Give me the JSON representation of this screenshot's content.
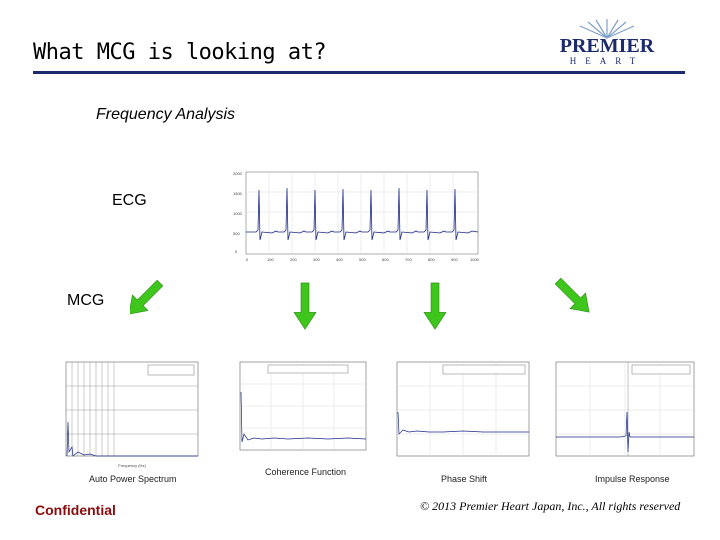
{
  "slide": {
    "title": "What MCG is looking at?",
    "logo_top": "PREMIER",
    "logo_bottom": "HEART",
    "subtitle": "Frequency Analysis",
    "ecg_label": "ECG",
    "mcg_label": "MCG",
    "panels": [
      {
        "caption": "Auto Power Spectrum"
      },
      {
        "caption": "Coherence Function"
      },
      {
        "caption": "Phase Shift"
      },
      {
        "caption": "Impulse Response"
      }
    ],
    "footer_left": "Confidential",
    "footer_right": "© 2013  Premier Heart Japan, Inc., All rights reserved"
  },
  "colors": {
    "accent": "#1c2a6e",
    "arrow": "#3ec61c",
    "confidential": "#8a0b0b",
    "trace": "#1c2a8a"
  }
}
